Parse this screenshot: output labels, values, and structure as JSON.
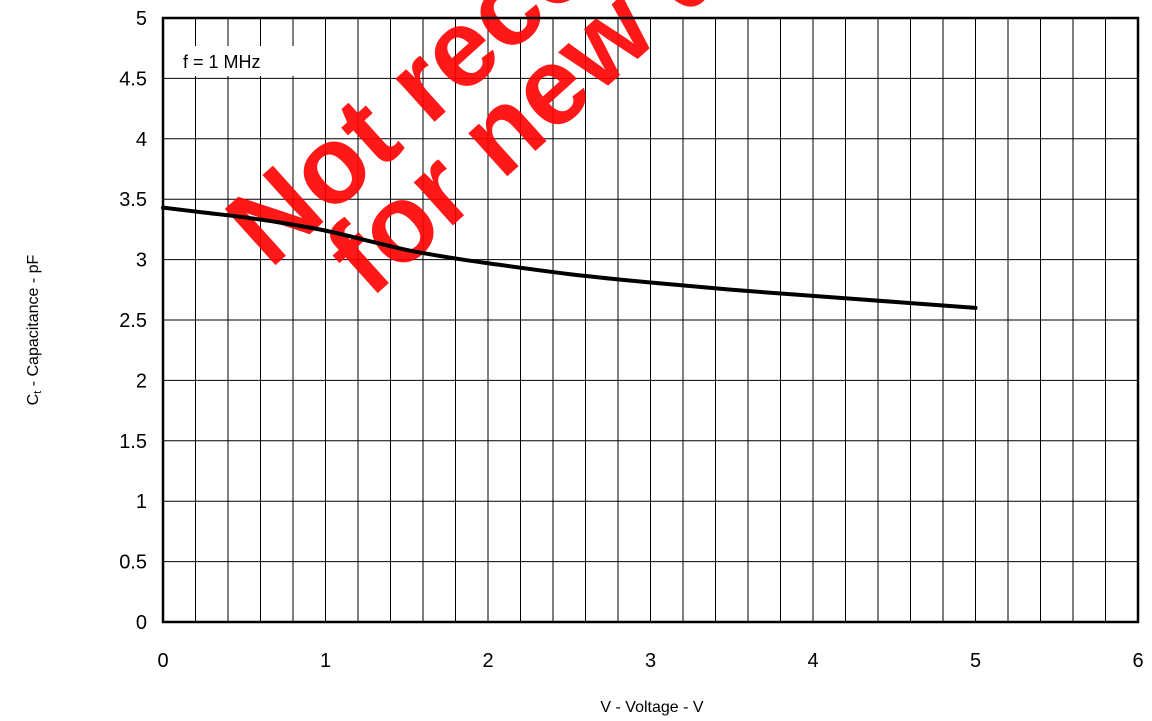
{
  "chart_data": {
    "type": "line",
    "title": "",
    "xlabel": "V - Voltage - V",
    "ylabel": "Ct - Capacitance - pF",
    "ylabel_main": "C",
    "ylabel_sub": "t",
    "ylabel_rest": " - Capacitance - pF",
    "xlim": [
      0,
      6
    ],
    "ylim": [
      0,
      5
    ],
    "x_ticks": [
      0,
      1,
      2,
      3,
      4,
      5,
      6
    ],
    "x_tick_labels": [
      "0",
      "1",
      "2",
      "3",
      "4",
      "5",
      "6"
    ],
    "y_ticks": [
      0,
      0.5,
      1,
      1.5,
      2,
      2.5,
      3,
      3.5,
      4,
      4.5,
      5
    ],
    "y_tick_labels": [
      "0",
      "0.5",
      "1",
      "1.5",
      "2",
      "2.5",
      "3",
      "3.5",
      "4",
      "4.5",
      "5"
    ],
    "grid": true,
    "minor_x_step": 0.2,
    "series": [
      {
        "x": [
          0,
          0.25,
          0.5,
          0.75,
          1.0,
          1.25,
          1.5,
          1.75,
          2.0,
          2.5,
          3.0,
          3.5,
          4.0,
          4.5,
          5.0
        ],
        "y": [
          3.43,
          3.39,
          3.35,
          3.3,
          3.24,
          3.16,
          3.08,
          3.02,
          2.97,
          2.88,
          2.81,
          2.75,
          2.7,
          2.65,
          2.6
        ]
      }
    ],
    "annotations": [
      {
        "text": "f = 1 MHz"
      }
    ],
    "watermark": [
      "Not recommended",
      "for new design"
    ]
  }
}
